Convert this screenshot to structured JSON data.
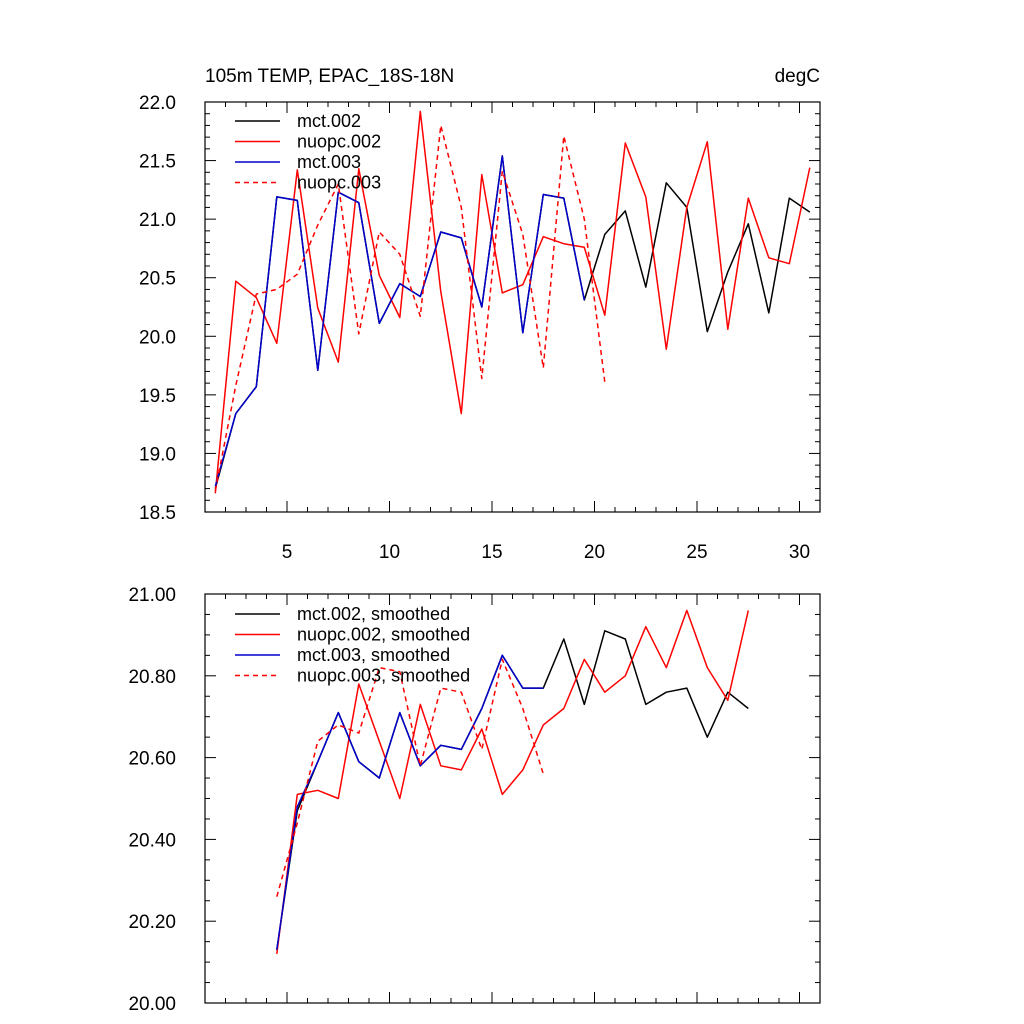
{
  "colors": {
    "black": "#000000",
    "red": "#ff0000",
    "blue": "#0000cc"
  },
  "chart_data": [
    {
      "type": "line",
      "title_left": "105m TEMP, EPAC_18S-18N",
      "title_right": "degC",
      "xlabel": "",
      "ylabel": "",
      "xlim": [
        1,
        31
      ],
      "ylim": [
        18.5,
        22.0
      ],
      "x_major_ticks": [
        5,
        10,
        15,
        20,
        25,
        30
      ],
      "x_tick_labels": [
        "5",
        "10",
        "15",
        "20",
        "25",
        "30"
      ],
      "x_minor_step": 1,
      "y_major_ticks": [
        18.5,
        19.0,
        19.5,
        20.0,
        20.5,
        21.0,
        21.5,
        22.0
      ],
      "y_tick_labels": [
        "18.5",
        "19.0",
        "19.5",
        "20.0",
        "20.5",
        "21.0",
        "21.5",
        "22.0"
      ],
      "y_minor_step": 0.1,
      "legend_position": "top-left",
      "series": [
        {
          "name": "mct.002",
          "color": "#000000",
          "dash": "solid",
          "x": [
            1.5,
            2.5,
            3.5,
            4.5,
            5.5,
            6.5,
            7.5,
            8.5,
            9.5,
            10.5,
            11.5,
            12.5,
            13.5,
            14.5,
            15.5,
            16.5,
            17.5,
            18.5,
            19.5,
            20.5,
            21.5,
            22.5,
            23.5,
            24.5,
            25.5,
            26.5,
            27.5,
            28.5,
            29.5,
            30.5
          ],
          "values": [
            18.7,
            19.34,
            19.57,
            21.19,
            21.16,
            19.71,
            21.23,
            21.14,
            20.11,
            20.45,
            20.34,
            20.89,
            20.84,
            20.25,
            21.54,
            20.03,
            21.21,
            21.18,
            20.31,
            20.87,
            21.07,
            20.42,
            21.31,
            21.1,
            20.04,
            20.55,
            20.96,
            20.2,
            21.18,
            21.06
          ]
        },
        {
          "name": "nuopc.002",
          "color": "#ff0000",
          "dash": "solid",
          "x": [
            1.5,
            2.5,
            3.5,
            4.5,
            5.5,
            6.5,
            7.5,
            8.5,
            9.5,
            10.5,
            11.5,
            12.5,
            13.5,
            14.5,
            15.5,
            16.5,
            17.5,
            18.5,
            19.5,
            20.5,
            21.5,
            22.5,
            23.5,
            24.5,
            25.5,
            26.5,
            27.5,
            28.5,
            29.5,
            30.5
          ],
          "values": [
            18.66,
            20.47,
            20.33,
            19.94,
            21.42,
            20.24,
            19.78,
            21.43,
            20.52,
            20.16,
            21.92,
            20.38,
            19.34,
            21.38,
            20.37,
            20.44,
            20.85,
            20.79,
            20.76,
            20.18,
            21.65,
            21.19,
            19.89,
            21.1,
            21.66,
            20.06,
            21.18,
            20.67,
            20.62,
            21.44
          ]
        },
        {
          "name": "mct.003",
          "color": "#0000cc",
          "dash": "solid",
          "x": [
            1.5,
            2.5,
            3.5,
            4.5,
            5.5,
            6.5,
            7.5,
            8.5,
            9.5,
            10.5,
            11.5,
            12.5,
            13.5,
            14.5,
            15.5,
            16.5,
            17.5,
            18.5,
            19.5
          ],
          "values": [
            18.72,
            19.34,
            19.57,
            21.19,
            21.16,
            19.71,
            21.23,
            21.14,
            20.11,
            20.45,
            20.34,
            20.89,
            20.84,
            20.25,
            21.54,
            20.03,
            21.21,
            21.18,
            20.31
          ]
        },
        {
          "name": "nuopc.003",
          "color": "#ff0000",
          "dash": "dashed",
          "x": [
            1.5,
            2.5,
            3.5,
            4.5,
            5.5,
            6.5,
            7.5,
            8.5,
            9.5,
            10.5,
            11.5,
            12.5,
            13.5,
            14.5,
            15.5,
            16.5,
            17.5,
            18.5,
            19.5,
            20.5
          ],
          "values": [
            18.68,
            19.58,
            20.36,
            20.4,
            20.53,
            20.95,
            21.3,
            20.02,
            20.89,
            20.7,
            20.17,
            21.8,
            21.1,
            19.64,
            21.41,
            20.87,
            19.73,
            21.71,
            21.0,
            19.61
          ]
        }
      ]
    },
    {
      "type": "line",
      "title_left": "",
      "title_right": "",
      "xlabel": "",
      "ylabel": "",
      "xlim": [
        1,
        31
      ],
      "ylim": [
        20.0,
        21.0
      ],
      "x_major_ticks": [
        5,
        10,
        15,
        20,
        25,
        30
      ],
      "x_tick_labels": [],
      "x_minor_step": 1,
      "y_major_ticks": [
        20.0,
        20.2,
        20.4,
        20.6,
        20.8,
        21.0
      ],
      "y_tick_labels": [
        "20.00",
        "20.20",
        "20.40",
        "20.60",
        "20.80",
        "21.00"
      ],
      "y_minor_step": 0.05,
      "legend_position": "top-left",
      "series": [
        {
          "name": "mct.002, smoothed",
          "color": "#000000",
          "dash": "solid",
          "x": [
            4.5,
            5.5,
            6.5,
            7.5,
            8.5,
            9.5,
            10.5,
            11.5,
            12.5,
            13.5,
            14.5,
            15.5,
            16.5,
            17.5,
            18.5,
            19.5,
            20.5,
            21.5,
            22.5,
            23.5,
            24.5,
            25.5,
            26.5,
            27.5
          ],
          "values": [
            20.13,
            20.47,
            20.59,
            20.71,
            20.59,
            20.55,
            20.71,
            20.58,
            20.63,
            20.62,
            20.72,
            20.85,
            20.77,
            20.77,
            20.89,
            20.73,
            20.91,
            20.89,
            20.73,
            20.76,
            20.77,
            20.65,
            20.76,
            20.72
          ]
        },
        {
          "name": "nuopc.002, smoothed",
          "color": "#ff0000",
          "dash": "solid",
          "x": [
            4.5,
            5.5,
            6.5,
            7.5,
            8.5,
            9.5,
            10.5,
            11.5,
            12.5,
            13.5,
            14.5,
            15.5,
            16.5,
            17.5,
            18.5,
            19.5,
            20.5,
            21.5,
            22.5,
            23.5,
            24.5,
            25.5,
            26.5,
            27.5
          ],
          "values": [
            20.12,
            20.51,
            20.52,
            20.5,
            20.78,
            20.64,
            20.5,
            20.73,
            20.58,
            20.57,
            20.67,
            20.51,
            20.57,
            20.68,
            20.72,
            20.84,
            20.76,
            20.8,
            20.92,
            20.82,
            20.96,
            20.82,
            20.74,
            20.96
          ]
        },
        {
          "name": "mct.003, smoothed",
          "color": "#0000cc",
          "dash": "solid",
          "x": [
            4.5,
            5.5,
            6.5,
            7.5,
            8.5,
            9.5,
            10.5,
            11.5,
            12.5,
            13.5,
            14.5,
            15.5,
            16.5,
            17.5
          ],
          "values": [
            20.13,
            20.48,
            20.59,
            20.71,
            20.59,
            20.55,
            20.71,
            20.58,
            20.63,
            20.62,
            20.72,
            20.85,
            20.77,
            20.77
          ]
        },
        {
          "name": "nuopc.003, smoothed",
          "color": "#ff0000",
          "dash": "dashed",
          "x": [
            4.5,
            5.5,
            6.5,
            7.5,
            8.5,
            9.5,
            10.5,
            11.5,
            12.5,
            13.5,
            14.5,
            15.5,
            16.5,
            17.5
          ],
          "values": [
            20.26,
            20.44,
            20.64,
            20.68,
            20.66,
            20.82,
            20.81,
            20.58,
            20.77,
            20.76,
            20.62,
            20.84,
            20.72,
            20.56
          ]
        }
      ]
    }
  ]
}
